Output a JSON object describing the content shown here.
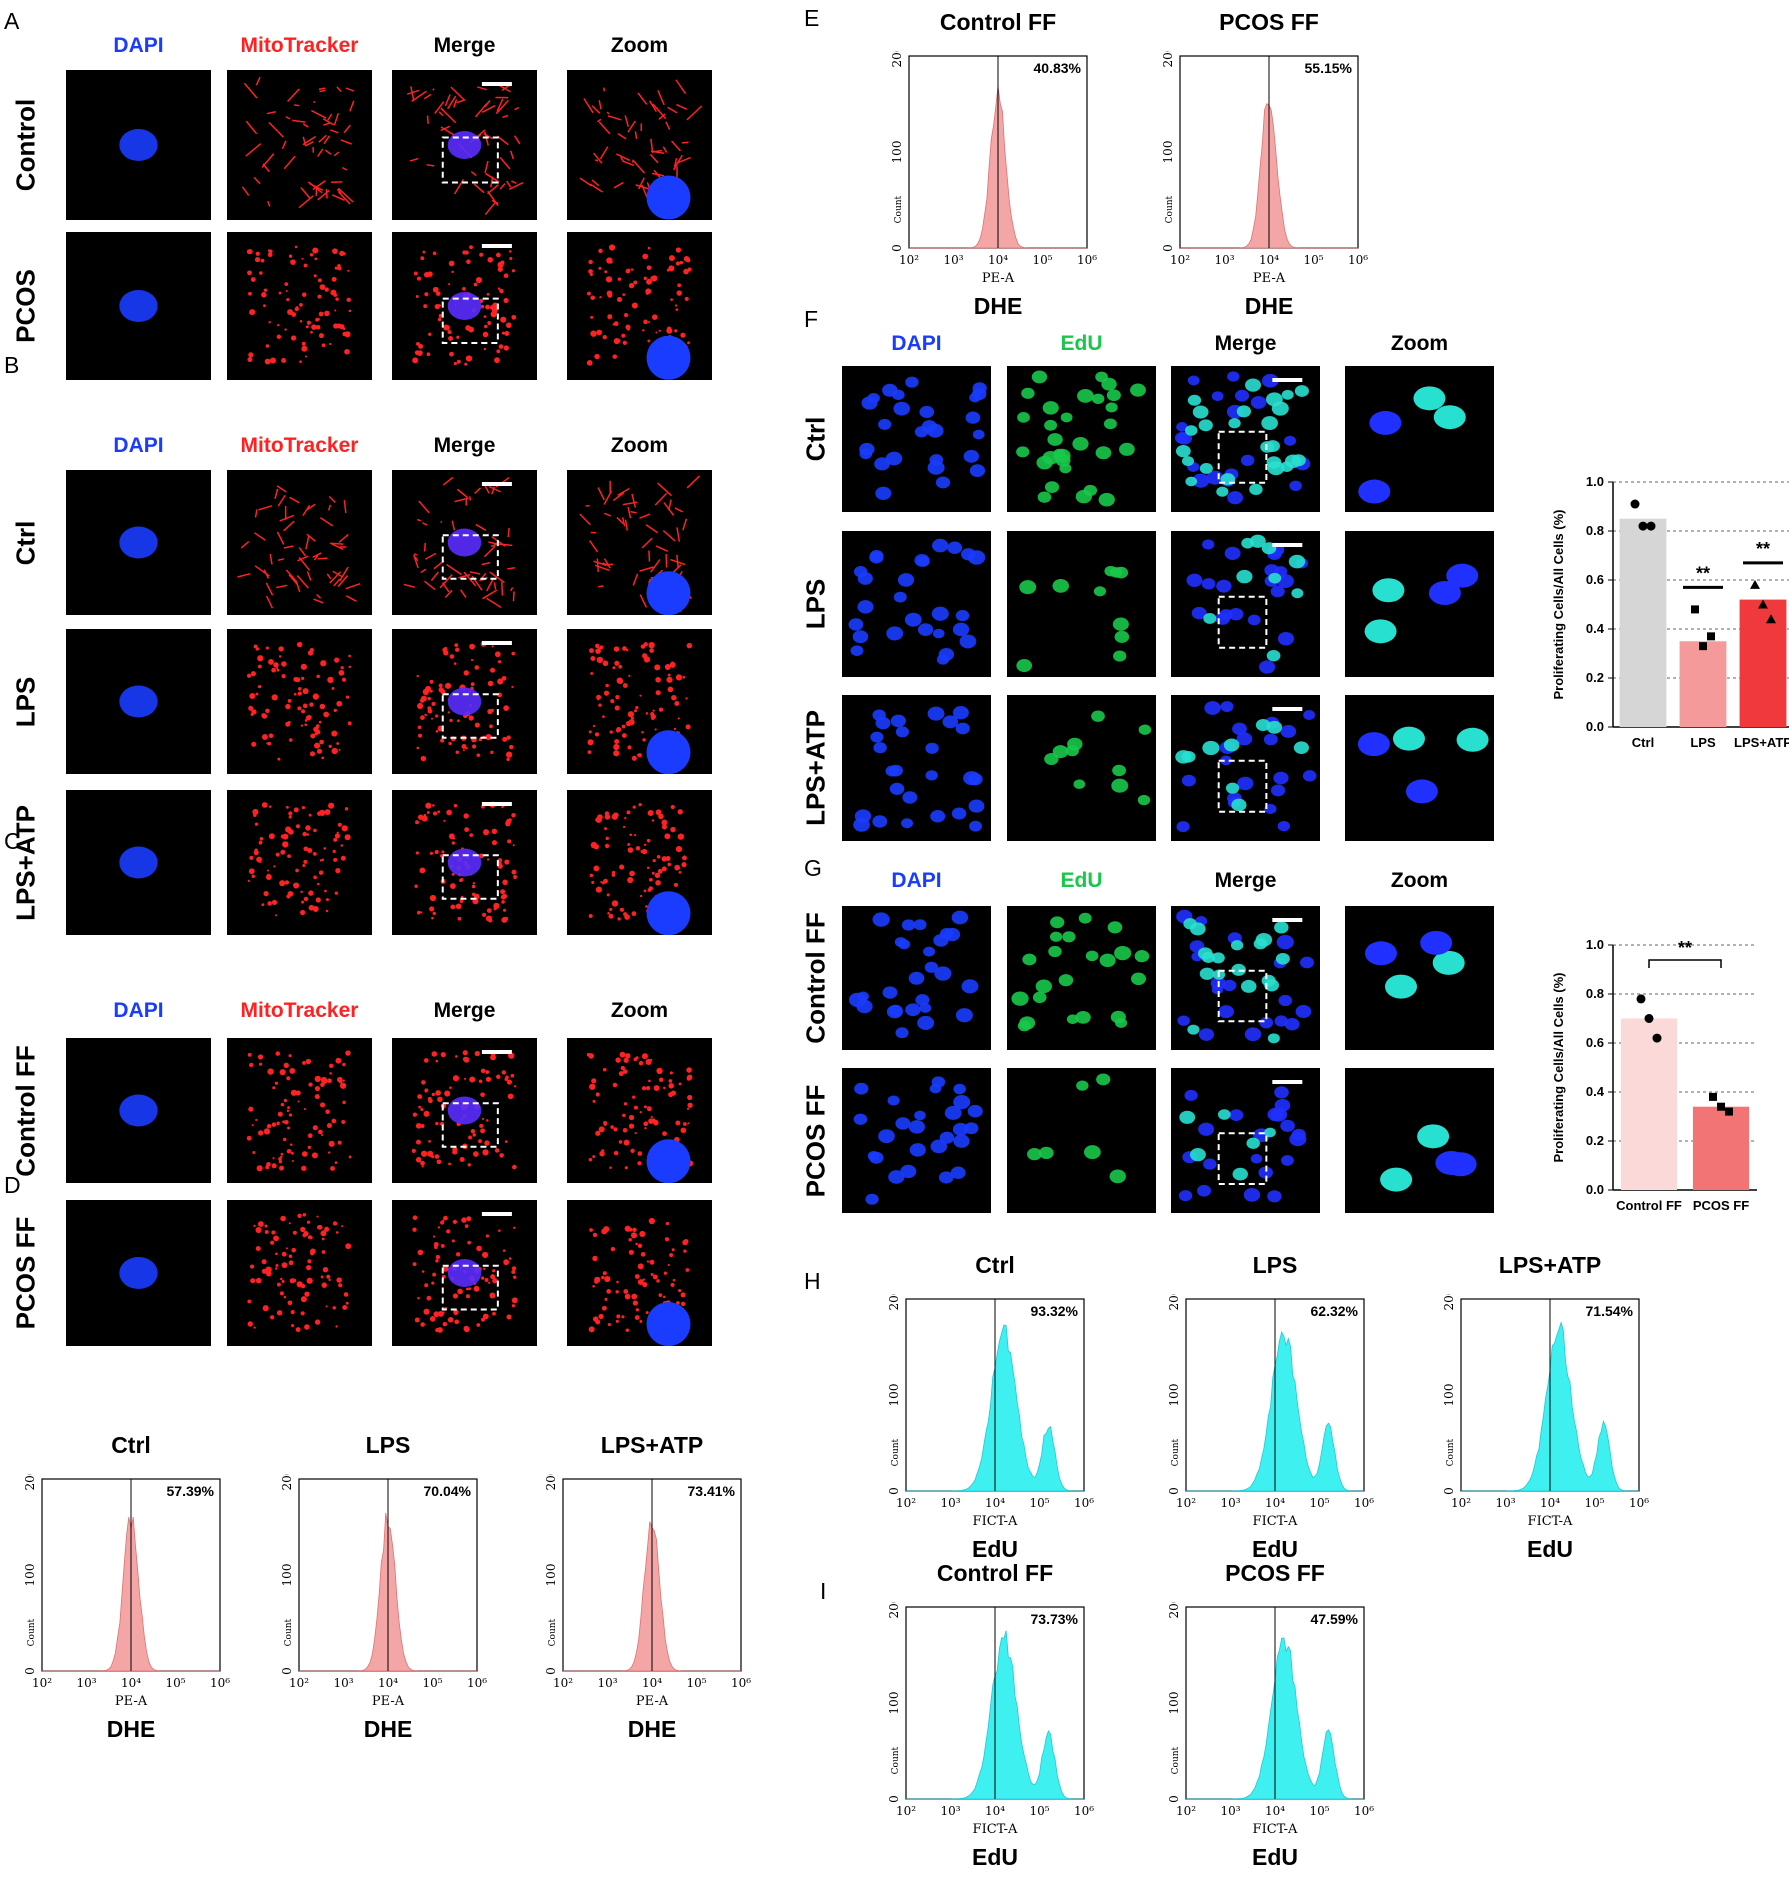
{
  "panels": {
    "A": "A",
    "B": "B",
    "C": "C",
    "D": "D",
    "E": "E",
    "F": "F",
    "G": "G",
    "H": "H",
    "I": "I"
  },
  "channels": {
    "dapi": "DAPI",
    "mito": "MitoTracker",
    "edu": "EdU",
    "merge": "Merge",
    "zoom": "Zoom"
  },
  "rows": {
    "A": [
      "Control",
      "PCOS"
    ],
    "B": [
      "Ctrl",
      "LPS",
      "LPS+ATP"
    ],
    "C": [
      "Control FF",
      "PCOS FF"
    ],
    "F": [
      "Ctrl",
      "LPS",
      "LPS+ATP"
    ],
    "G": [
      "Control FF",
      "PCOS FF"
    ]
  },
  "colors": {
    "dapi": "#1a3cff",
    "mito": "#ff2222",
    "edu": "#18c84a",
    "pink_hist": "#f4a6a6",
    "cyan_hist": "#3ff0f0"
  },
  "histograms": {
    "D": [
      {
        "title": "Ctrl",
        "pct": "57.39%",
        "axis": "PE-A",
        "stain": "DHE"
      },
      {
        "title": "LPS",
        "pct": "70.04%",
        "axis": "PE-A",
        "stain": "DHE"
      },
      {
        "title": "LPS+ATP",
        "pct": "73.41%",
        "axis": "PE-A",
        "stain": "DHE"
      }
    ],
    "E": [
      {
        "title": "Control FF",
        "pct": "40.83%",
        "axis": "PE-A",
        "stain": "DHE"
      },
      {
        "title": "PCOS FF",
        "pct": "55.15%",
        "axis": "PE-A",
        "stain": "DHE"
      }
    ],
    "H": [
      {
        "title": "Ctrl",
        "pct": "93.32%",
        "axis": "FICT-A",
        "stain": "EdU"
      },
      {
        "title": "LPS",
        "pct": "62.32%",
        "axis": "FICT-A",
        "stain": "EdU"
      },
      {
        "title": "LPS+ATP",
        "pct": "71.54%",
        "axis": "FICT-A",
        "stain": "EdU"
      }
    ],
    "I": [
      {
        "title": "Control FF",
        "pct": "73.73%",
        "axis": "FICT-A",
        "stain": "EdU"
      },
      {
        "title": "PCOS FF",
        "pct": "47.59%",
        "axis": "FICT-A",
        "stain": "EdU"
      }
    ],
    "yticks": [
      "0",
      "100",
      "200"
    ],
    "ylabel": "Count",
    "xticks": [
      "10²",
      "10³",
      "10⁴",
      "10⁵",
      "10⁶"
    ]
  },
  "chart_data": [
    {
      "type": "bar",
      "panel": "F",
      "categories": [
        "Ctrl",
        "LPS",
        "LPS+ATP"
      ],
      "values": [
        0.85,
        0.35,
        0.52
      ],
      "points": [
        [
          0.91,
          0.82,
          0.82
        ],
        [
          0.48,
          0.33,
          0.37
        ],
        [
          0.58,
          0.5,
          0.44
        ]
      ],
      "colors": [
        "#d6d6d6",
        "#f59a9a",
        "#f0393d"
      ],
      "ylabel": "Proliferating Cells/All Cells (%)",
      "ylim": [
        0,
        1.0
      ],
      "yticks": [
        "0.0",
        "0.2",
        "0.4",
        "0.6",
        "0.8",
        "1.0"
      ],
      "significance": [
        "",
        "**",
        "**"
      ]
    },
    {
      "type": "bar",
      "panel": "G",
      "categories": [
        "Control FF",
        "PCOS FF"
      ],
      "values": [
        0.7,
        0.34
      ],
      "points": [
        [
          0.78,
          0.7,
          0.62
        ],
        [
          0.38,
          0.34,
          0.32
        ]
      ],
      "colors": [
        "#fbd9d9",
        "#f27474"
      ],
      "ylabel": "Proliferating Cells/All Cells (%)",
      "ylim": [
        0,
        1.0
      ],
      "yticks": [
        "0.0",
        "0.2",
        "0.4",
        "0.6",
        "0.8",
        "1.0"
      ],
      "significance": "**"
    }
  ]
}
